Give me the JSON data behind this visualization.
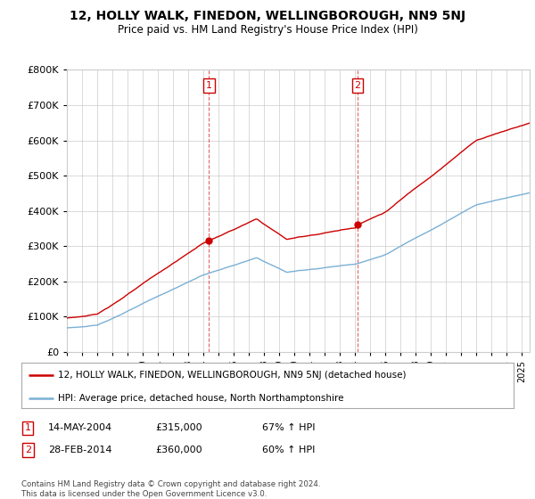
{
  "title": "12, HOLLY WALK, FINEDON, WELLINGBOROUGH, NN9 5NJ",
  "subtitle": "Price paid vs. HM Land Registry's House Price Index (HPI)",
  "legend_label_red": "12, HOLLY WALK, FINEDON, WELLINGBOROUGH, NN9 5NJ (detached house)",
  "legend_label_blue": "HPI: Average price, detached house, North Northamptonshire",
  "sale1_date": "14-MAY-2004",
  "sale1_price": "£315,000",
  "sale1_hpi": "67% ↑ HPI",
  "sale1_year": 2004.37,
  "sale1_value": 315000,
  "sale2_date": "28-FEB-2014",
  "sale2_price": "£360,000",
  "sale2_hpi": "60% ↑ HPI",
  "sale2_year": 2014.16,
  "sale2_value": 360000,
  "copyright": "Contains HM Land Registry data © Crown copyright and database right 2024.\nThis data is licensed under the Open Government Licence v3.0.",
  "red_color": "#cc0000",
  "blue_color": "#7ab0d4",
  "dashed_color": "#cc0000",
  "background_color": "#ffffff",
  "grid_color": "#cccccc",
  "ylim": [
    0,
    800000
  ],
  "xlim_start": 1995.0,
  "xlim_end": 2025.5
}
